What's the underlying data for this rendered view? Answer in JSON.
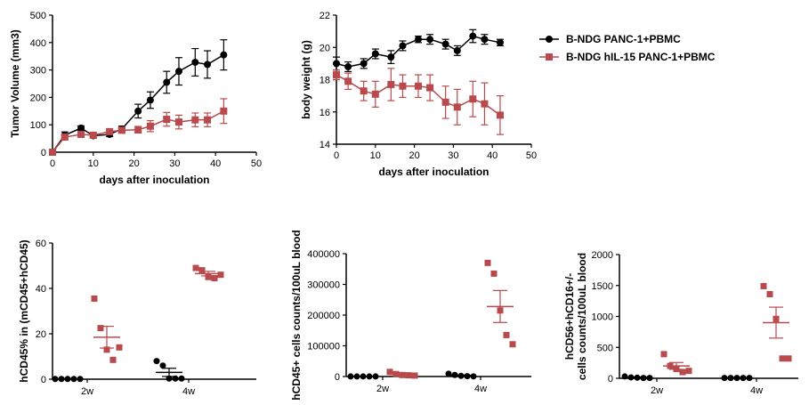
{
  "colors": {
    "black_series": "#000000",
    "red_series": "#b84a4d"
  },
  "legend": {
    "items": [
      {
        "label": "B-NDG PANC-1+PBMC",
        "color": "#000000",
        "marker": "circle"
      },
      {
        "label": "B-NDG hIL-15 PANC-1+PBMC",
        "color": "#b84a4d",
        "marker": "square"
      }
    ]
  },
  "chart_data": [
    {
      "type": "line",
      "xlabel": "days after inoculation",
      "ylabel": "Tumor Volume (mm3)",
      "xlim": [
        0,
        50
      ],
      "ylim": [
        0,
        500
      ],
      "xticks": [
        "0",
        "10",
        "20",
        "30",
        "40",
        "50"
      ],
      "yticks": [
        "0",
        "100",
        "200",
        "300",
        "400",
        "500"
      ],
      "series": [
        {
          "name": "B-NDG PANC-1+PBMC",
          "color": "#000000",
          "marker": "circle",
          "x": [
            0,
            3,
            7,
            10,
            14,
            17,
            21,
            24,
            28,
            31,
            35,
            38,
            42
          ],
          "y": [
            0,
            62,
            88,
            60,
            65,
            85,
            150,
            190,
            255,
            295,
            328,
            320,
            355
          ],
          "err": [
            0,
            12,
            8,
            8,
            8,
            10,
            25,
            30,
            40,
            50,
            50,
            50,
            55
          ]
        },
        {
          "name": "B-NDG hIL-15 PANC-1+PBMC",
          "color": "#b84a4d",
          "marker": "square",
          "x": [
            0,
            3,
            7,
            10,
            14,
            17,
            21,
            24,
            28,
            31,
            35,
            38,
            42
          ],
          "y": [
            0,
            55,
            65,
            62,
            75,
            80,
            82,
            95,
            120,
            110,
            118,
            118,
            150
          ],
          "err": [
            0,
            8,
            8,
            8,
            10,
            10,
            12,
            20,
            25,
            25,
            25,
            25,
            45
          ]
        }
      ]
    },
    {
      "type": "line",
      "xlabel": "days after inoculation",
      "ylabel": "body weight (g)",
      "xlim": [
        0,
        50
      ],
      "ylim": [
        14,
        22
      ],
      "xticks": [
        "0",
        "10",
        "20",
        "30",
        "40",
        "50"
      ],
      "yticks": [
        "14",
        "16",
        "18",
        "20",
        "22"
      ],
      "series": [
        {
          "name": "B-NDG PANC-1+PBMC",
          "color": "#000000",
          "marker": "circle",
          "x": [
            0,
            3,
            7,
            10,
            14,
            17,
            21,
            24,
            28,
            31,
            35,
            38,
            42
          ],
          "y": [
            19.0,
            18.8,
            19.0,
            19.6,
            19.4,
            20.1,
            20.5,
            20.5,
            20.2,
            19.8,
            20.7,
            20.5,
            20.3
          ],
          "err": [
            0.4,
            0.3,
            0.3,
            0.3,
            0.4,
            0.3,
            0.2,
            0.3,
            0.3,
            0.3,
            0.4,
            0.3,
            0.2
          ]
        },
        {
          "name": "B-NDG hIL-15 PANC-1+PBMC",
          "color": "#b84a4d",
          "marker": "square",
          "x": [
            0,
            3,
            7,
            10,
            14,
            17,
            21,
            24,
            28,
            31,
            35,
            38,
            42
          ],
          "y": [
            18.3,
            17.9,
            17.3,
            17.1,
            17.7,
            17.6,
            17.6,
            17.5,
            16.6,
            16.3,
            16.8,
            16.5,
            15.8
          ],
          "err": [
            0.3,
            0.5,
            0.6,
            0.8,
            1.0,
            0.7,
            0.7,
            0.8,
            1.0,
            1.1,
            1.1,
            1.3,
            1.2
          ]
        }
      ]
    },
    {
      "type": "scatter",
      "ylabel": "hCD45% in (mCD45+hCD45)",
      "ylim": [
        0,
        60
      ],
      "yticks": [
        "0",
        "20",
        "40",
        "60"
      ],
      "categories": [
        "2w",
        "4w"
      ],
      "groups": [
        {
          "category": "2w",
          "series": "B-NDG PANC-1+PBMC",
          "color": "#000000",
          "marker": "circle",
          "values": [
            0.1,
            0.1,
            0.1,
            0.1,
            0.1
          ],
          "mean": 0.1,
          "sem": 0.05
        },
        {
          "category": "2w",
          "series": "B-NDG hIL-15 PANC-1+PBMC",
          "color": "#b84a4d",
          "marker": "square",
          "values": [
            35.5,
            22.5,
            13,
            8.5,
            14
          ],
          "mean": 18.5,
          "sem": 4.8
        },
        {
          "category": "4w",
          "series": "B-NDG PANC-1+PBMC",
          "color": "#000000",
          "marker": "circle",
          "values": [
            8,
            6,
            0.3,
            0.3,
            0.3
          ],
          "mean": 3,
          "sem": 1.8
        },
        {
          "category": "4w",
          "series": "B-NDG hIL-15 PANC-1+PBMC",
          "color": "#b84a4d",
          "marker": "square",
          "values": [
            49,
            48,
            45,
            44.5,
            46
          ],
          "mean": 46.5,
          "sem": 1.0
        }
      ]
    },
    {
      "type": "scatter",
      "ylabel": "hCD45+ cells counts/100uL blood",
      "ylim": [
        0,
        400000
      ],
      "yticks": [
        "0",
        "100000",
        "200000",
        "300000",
        "400000"
      ],
      "categories": [
        "2w",
        "4w"
      ],
      "groups": [
        {
          "category": "2w",
          "series": "B-NDG PANC-1+PBMC",
          "color": "#000000",
          "marker": "circle",
          "values": [
            200,
            200,
            200,
            200,
            200
          ],
          "mean": 200,
          "sem": 100
        },
        {
          "category": "2w",
          "series": "B-NDG hIL-15 PANC-1+PBMC",
          "color": "#b84a4d",
          "marker": "square",
          "values": [
            15000,
            8000,
            5000,
            4000,
            3000
          ],
          "mean": 7000,
          "sem": 2500
        },
        {
          "category": "4w",
          "series": "B-NDG PANC-1+PBMC",
          "color": "#000000",
          "marker": "circle",
          "values": [
            9000,
            5000,
            2000,
            1000,
            500
          ],
          "mean": 3500,
          "sem": 1500
        },
        {
          "category": "4w",
          "series": "B-NDG hIL-15 PANC-1+PBMC",
          "color": "#b84a4d",
          "marker": "square",
          "values": [
            370000,
            335000,
            215000,
            135000,
            105000
          ],
          "mean": 228000,
          "sem": 52000
        }
      ]
    },
    {
      "type": "scatter",
      "ylabel_lines": [
        "hCD56+hCD16+/-",
        "cells counts/100uL blood"
      ],
      "ylim": [
        0,
        2000
      ],
      "yticks": [
        "0",
        "500",
        "1000",
        "1500",
        "2000"
      ],
      "categories": [
        "2w",
        "4w"
      ],
      "groups": [
        {
          "category": "2w",
          "series": "B-NDG PANC-1+PBMC",
          "color": "#000000",
          "marker": "circle",
          "values": [
            30,
            15,
            10,
            5,
            5
          ],
          "mean": 15,
          "sem": 5
        },
        {
          "category": "2w",
          "series": "B-NDG hIL-15 PANC-1+PBMC",
          "color": "#b84a4d",
          "marker": "square",
          "values": [
            390,
            200,
            150,
            100,
            120
          ],
          "mean": 200,
          "sem": 55
        },
        {
          "category": "4w",
          "series": "B-NDG PANC-1+PBMC",
          "color": "#000000",
          "marker": "circle",
          "values": [
            5,
            5,
            5,
            5,
            5
          ],
          "mean": 5,
          "sem": 2
        },
        {
          "category": "4w",
          "series": "B-NDG hIL-15 PANC-1+PBMC",
          "color": "#b84a4d",
          "marker": "square",
          "values": [
            1490,
            1360,
            960,
            320,
            320
          ],
          "mean": 900,
          "sem": 250
        }
      ]
    }
  ]
}
